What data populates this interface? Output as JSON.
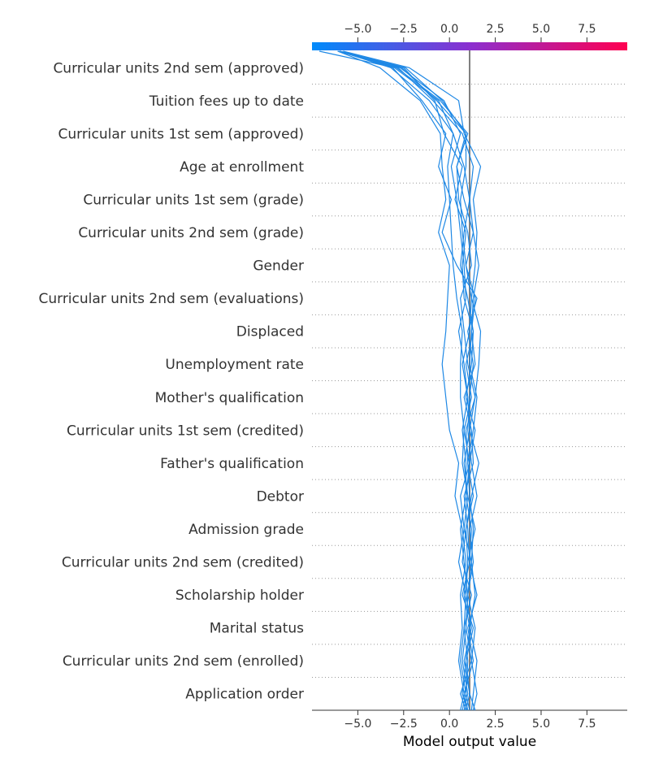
{
  "chart_data": {
    "type": "line",
    "subtype": "shap-decision-plot",
    "xlabel": "Model output value",
    "xlim": [
      -7.5,
      9.7
    ],
    "xticks": [
      -5.0,
      -2.5,
      0.0,
      2.5,
      5.0,
      7.5
    ],
    "xtick_labels": [
      "−5.0",
      "−2.5",
      "0.0",
      "2.5",
      "5.0",
      "7.5"
    ],
    "base_value": 1.1,
    "colorbar": {
      "from_color": "#008bfb",
      "mid_color": "#8b2fd0",
      "to_color": "#ff0051"
    },
    "line_color": "#1e88e5",
    "features": [
      "Curricular units 2nd sem (approved)",
      "Tuition fees up to date",
      "Curricular units 1st sem (approved)",
      "Age at enrollment",
      "Curricular units 1st sem (grade)",
      "Curricular units 2nd sem (grade)",
      "Gender",
      "Curricular units 2nd sem (evaluations)",
      "Displaced",
      "Unemployment rate",
      "Mother's qualification",
      "Curricular units 1st sem (credited)",
      "Father's qualification",
      "Debtor",
      "Admission grade",
      "Curricular units 2nd sem (credited)",
      "Scholarship holder",
      "Marital status",
      "Curricular units 2nd sem (enrolled)",
      "Application order"
    ],
    "series": [
      {
        "values": [
          1.3,
          1.5,
          1.2,
          1.4,
          1.0,
          1.3,
          1.1,
          1.5,
          1.2,
          1.0,
          1.1,
          1.3,
          1.0,
          1.5,
          0.4,
          -0.4,
          0.1,
          -0.6,
          -0.2,
          -1.5,
          -3.1,
          -6.0
        ]
      },
      {
        "values": [
          1.0,
          0.8,
          1.3,
          1.0,
          1.5,
          1.1,
          1.2,
          0.9,
          1.1,
          1.4,
          0.9,
          1.2,
          1.3,
          0.8,
          0.7,
          0.9,
          0.3,
          0.7,
          -0.3,
          -0.8,
          -2.5,
          -6.0
        ]
      },
      {
        "values": [
          0.9,
          1.1,
          0.8,
          1.2,
          0.9,
          1.0,
          1.4,
          1.0,
          0.8,
          1.1,
          1.0,
          0.7,
          1.1,
          1.2,
          0.9,
          1.3,
          0.8,
          0.4,
          1.0,
          -0.5,
          -2.9,
          -6.0
        ]
      },
      {
        "values": [
          1.1,
          0.9,
          1.0,
          0.8,
          1.2,
          0.7,
          0.9,
          1.3,
          1.0,
          0.9,
          1.4,
          1.0,
          0.8,
          0.6,
          1.2,
          1.0,
          0.5,
          0.4,
          0.9,
          -0.7,
          -2.6,
          -6.0
        ]
      },
      {
        "values": [
          0.8,
          1.0,
          0.7,
          0.9,
          1.0,
          1.2,
          0.8,
          0.6,
          1.1,
          0.8,
          1.2,
          0.9,
          1.3,
          1.0,
          0.6,
          0.8,
          1.1,
          1.3,
          0.7,
          -0.9,
          -2.8,
          -6.1
        ]
      },
      {
        "values": [
          1.2,
          1.3,
          1.5,
          1.1,
          1.4,
          1.2,
          1.3,
          1.1,
          1.0,
          1.3,
          1.5,
          1.1,
          1.2,
          1.4,
          0.9,
          0.7,
          0.6,
          0.9,
          0.9,
          -0.4,
          -2.4,
          -6.0
        ]
      },
      {
        "values": [
          1.0,
          0.7,
          0.9,
          1.1,
          0.8,
          1.0,
          0.9,
          1.2,
          1.6,
          1.1,
          1.4,
          1.6,
          1.7,
          1.2,
          1.4,
          1.5,
          1.3,
          1.7,
          0.8,
          0.5,
          -2.2,
          -5.8
        ]
      },
      {
        "values": [
          0.6,
          0.8,
          0.5,
          0.7,
          0.6,
          0.9,
          0.7,
          0.3,
          0.5,
          0.0,
          -0.2,
          -0.4,
          -0.2,
          -0.1,
          0.0,
          -0.6,
          -0.2,
          -0.4,
          -0.5,
          -1.6,
          -3.8,
          -6.1
        ]
      },
      {
        "values": [
          0.7,
          0.9,
          0.6,
          0.8,
          0.9,
          0.5,
          0.8,
          1.0,
          0.7,
          0.8,
          0.6,
          0.6,
          0.7,
          0.4,
          0.2,
          0.1,
          0.0,
          -0.1,
          0.2,
          -1.1,
          -3.2,
          -6.0
        ]
      },
      {
        "values": [
          0.9,
          0.6,
          1.2,
          0.9,
          1.0,
          0.8,
          0.6,
          0.9,
          0.9,
          0.7,
          1.0,
          0.8,
          0.5,
          0.9,
          0.8,
          0.6,
          0.4,
          0.1,
          0.6,
          -0.3,
          -2.7,
          -6.0
        ]
      },
      {
        "values": [
          1.4,
          1.1,
          0.9,
          1.3,
          0.7,
          1.1,
          1.0,
          0.8,
          1.3,
          1.2,
          0.8,
          1.4,
          1.2,
          1.3,
          1.6,
          1.3,
          1.1,
          0.8,
          0.2,
          -0.6,
          -3.0,
          -7.1
        ]
      }
    ]
  }
}
